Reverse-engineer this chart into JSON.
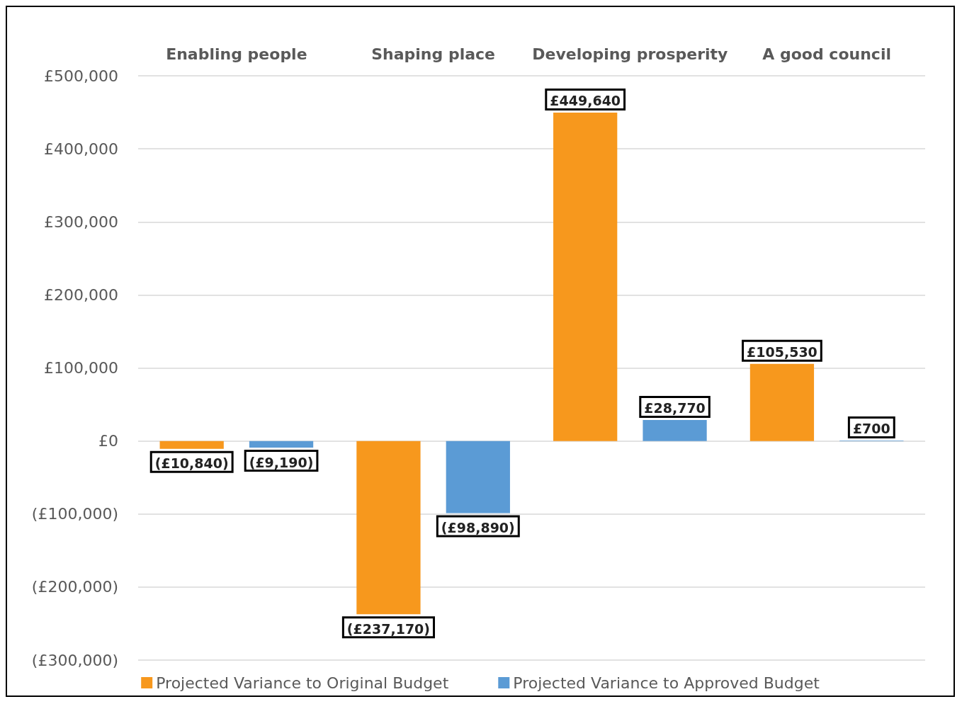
{
  "chart_data": {
    "type": "bar",
    "categories": [
      "Enabling people",
      "Shaping place",
      "Developing prosperity",
      "A good council"
    ],
    "series": [
      {
        "name": "Projected Variance to Original Budget",
        "color": "#f7981d",
        "values": [
          -10840,
          -237170,
          449640,
          105530
        ],
        "value_labels": [
          "(£10,840)",
          "(£237,170)",
          "£449,640",
          "£105,530"
        ]
      },
      {
        "name": "Projected Variance to Approved Budget",
        "color": "#5b9bd5",
        "values": [
          -9190,
          -98890,
          28770,
          700
        ],
        "value_labels": [
          "(£9,190)",
          "(£98,890)",
          "£28,770",
          "£700"
        ]
      }
    ],
    "ylim": [
      -300000,
      500000
    ],
    "yticks": [
      {
        "value": -300000,
        "label": "(£300,000)"
      },
      {
        "value": -200000,
        "label": "(£200,000)"
      },
      {
        "value": -100000,
        "label": "(£100,000)"
      },
      {
        "value": 0,
        "label": "£0"
      },
      {
        "value": 100000,
        "label": "£100,000"
      },
      {
        "value": 200000,
        "label": "£200,000"
      },
      {
        "value": 300000,
        "label": "£300,000"
      },
      {
        "value": 400000,
        "label": "£400,000"
      },
      {
        "value": 500000,
        "label": "£500,000"
      }
    ],
    "grid": "y",
    "legend": "bottom"
  }
}
